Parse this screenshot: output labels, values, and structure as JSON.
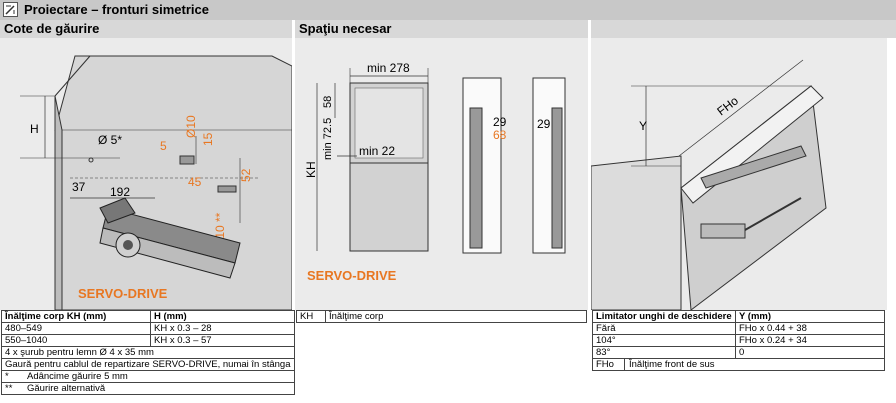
{
  "title": "Proiectare – fronturi simetrice",
  "sections": {
    "left": "Cote de găurire",
    "mid": "Spaţiu necesar"
  },
  "left_diagram": {
    "labels": {
      "H": "H",
      "d5": "Ø 5*",
      "d37": "37",
      "d192": "192",
      "d5b": "5",
      "d15": "15",
      "d10a": "Ø10",
      "d45": "45",
      "d52": "52",
      "d10b": "Ø10 **"
    },
    "brand": "SERVO-DRIVE"
  },
  "mid_diagram": {
    "labels": {
      "min278": "min 278",
      "KH": "KH",
      "d58": "58",
      "min72": "min 72.5",
      "min22": "min 22",
      "d29a": "29",
      "d68": "68",
      "d29b": "29"
    },
    "brand": "SERVO-DRIVE"
  },
  "right_diagram": {
    "labels": {
      "Y": "Y",
      "FHo": "FHo"
    }
  },
  "table_left": {
    "header": [
      "Înălţime corp KH (mm)",
      "H (mm)"
    ],
    "rows": [
      [
        "480–549",
        "KH x 0.3 – 28"
      ],
      [
        "550–1040",
        "KH x 0.3 – 57"
      ]
    ],
    "notes": [
      "4 x şurub pentru lemn Ø 4 x 35 mm",
      "Gaură pentru cablul de repartizare SERVO-DRIVE, numai în stânga"
    ],
    "footnotes": [
      [
        "*",
        "Adâncime găurire 5 mm"
      ],
      [
        "**",
        "Găurire alternativă"
      ]
    ]
  },
  "table_mid": {
    "rows": [
      [
        "KH",
        "Înălţime corp"
      ]
    ]
  },
  "table_right": {
    "header": [
      "Limitator unghi de deschidere",
      "Y (mm)"
    ],
    "rows": [
      [
        "Fără",
        "FHo x 0.44 + 38"
      ],
      [
        "104°",
        "FHo x 0.24 + 34"
      ],
      [
        "83°",
        "0"
      ]
    ],
    "legend": [
      [
        "FHo",
        "Înălţime front de sus"
      ]
    ]
  },
  "colors": {
    "accent": "#e87722",
    "panel": "#ebebeb",
    "header": "#c8c8c8"
  }
}
